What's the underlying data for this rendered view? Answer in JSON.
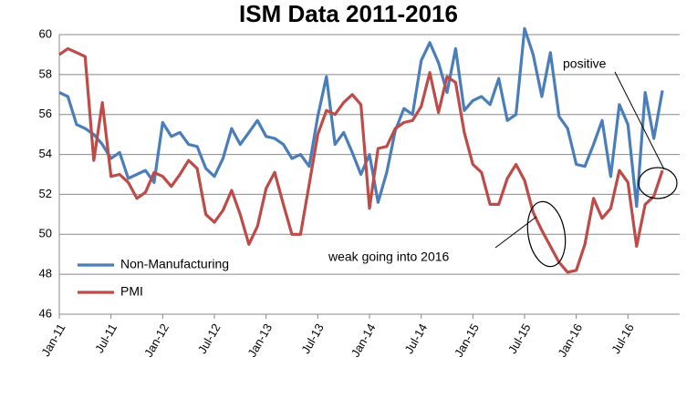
{
  "chart_data": {
    "type": "line",
    "title": "ISM Data 2011-2016",
    "categories": [
      "Jan-11",
      null,
      null,
      null,
      null,
      null,
      "Jul-11",
      null,
      null,
      null,
      null,
      null,
      "Jan-12",
      null,
      null,
      null,
      null,
      null,
      "Jul-12",
      null,
      null,
      null,
      null,
      null,
      "Jan-13",
      null,
      null,
      null,
      null,
      null,
      "Jul-13",
      null,
      null,
      null,
      null,
      null,
      "Jan-14",
      null,
      null,
      null,
      null,
      null,
      "Jul-14",
      null,
      null,
      null,
      null,
      null,
      "Jan-15",
      null,
      null,
      null,
      null,
      null,
      "Jul-15",
      null,
      null,
      null,
      null,
      null,
      "Jan-16",
      null,
      null,
      null,
      null,
      null,
      "Jul-16",
      null,
      null,
      null,
      null
    ],
    "series": [
      {
        "name": "Non-Manufacturing",
        "color": "#4a7ebb",
        "values": [
          57.1,
          56.9,
          55.5,
          55.3,
          55.0,
          54.5,
          53.8,
          54.1,
          52.8,
          53.0,
          53.2,
          52.6,
          55.6,
          54.9,
          55.1,
          54.5,
          54.4,
          53.3,
          52.9,
          53.8,
          55.3,
          54.5,
          55.1,
          55.7,
          54.9,
          54.8,
          54.5,
          53.8,
          54.0,
          53.4,
          55.9,
          57.9,
          54.5,
          55.1,
          54.1,
          53.0,
          54.0,
          51.6,
          53.1,
          55.2,
          56.3,
          56.0,
          58.7,
          59.6,
          58.6,
          57.1,
          59.3,
          56.2,
          56.7,
          56.9,
          56.5,
          57.8,
          55.7,
          56.0,
          60.3,
          59.0,
          56.9,
          59.1,
          55.9,
          55.3,
          53.5,
          53.4,
          54.5,
          55.7,
          52.9,
          56.5,
          55.5,
          51.4,
          57.1,
          54.8,
          57.2
        ]
      },
      {
        "name": "PMI",
        "color": "#be4b48",
        "values": [
          59.0,
          59.3,
          59.1,
          58.9,
          53.7,
          56.6,
          52.9,
          53.0,
          52.6,
          51.8,
          52.1,
          53.1,
          52.9,
          52.4,
          53.0,
          53.7,
          53.3,
          51.0,
          50.6,
          51.2,
          52.2,
          51.0,
          49.5,
          50.4,
          52.3,
          53.1,
          51.5,
          50.0,
          50.0,
          52.5,
          55.0,
          56.2,
          56.0,
          56.6,
          57.0,
          56.5,
          51.3,
          54.3,
          54.4,
          55.3,
          55.6,
          55.7,
          56.4,
          58.1,
          56.1,
          57.9,
          57.6,
          55.1,
          53.5,
          53.1,
          51.5,
          51.5,
          52.8,
          53.5,
          52.7,
          51.1,
          50.2,
          49.4,
          48.6,
          48.1,
          48.2,
          49.5,
          51.8,
          50.8,
          51.3,
          53.2,
          52.6,
          49.4,
          51.5,
          51.9,
          53.2
        ]
      }
    ],
    "ylim": [
      46,
      60
    ],
    "yticks": [
      46,
      48,
      50,
      52,
      54,
      56,
      58,
      60
    ],
    "grid": true,
    "annotations": [
      "positive",
      "weak going into 2016"
    ]
  }
}
